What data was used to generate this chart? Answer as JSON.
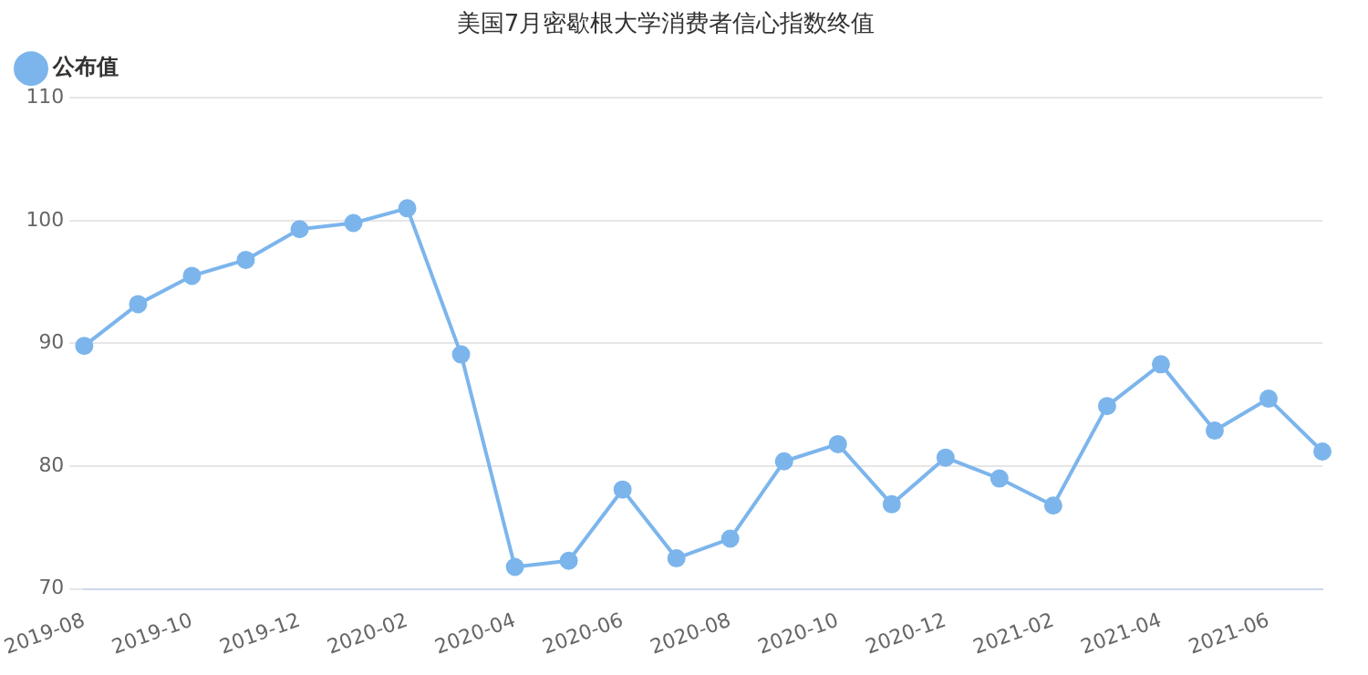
{
  "chart_data": {
    "type": "line",
    "title": "美国7月密歇根大学消费者信心指数终值",
    "categories": [
      "2019-08",
      null,
      "2019-10",
      null,
      "2019-12",
      null,
      "2020-02",
      null,
      "2020-04",
      null,
      "2020-06",
      null,
      "2020-08",
      null,
      "2020-10",
      null,
      "2020-12",
      null,
      "2021-02",
      null,
      "2021-04",
      null,
      "2021-06",
      null
    ],
    "series": [
      {
        "name": "公布值",
        "color": "#7cb5ec",
        "values": [
          89.8,
          93.2,
          95.5,
          96.8,
          99.3,
          99.8,
          101.0,
          89.1,
          71.8,
          72.3,
          78.1,
          72.5,
          74.1,
          80.4,
          81.8,
          76.9,
          80.7,
          79.0,
          76.8,
          84.9,
          88.3,
          82.9,
          85.5,
          81.2
        ]
      }
    ],
    "ylim": [
      70,
      110
    ],
    "yticks": [
      70,
      80,
      90,
      100,
      110
    ],
    "grid": "y",
    "legend": "top left",
    "marker": "circle",
    "line_style": "solid"
  }
}
